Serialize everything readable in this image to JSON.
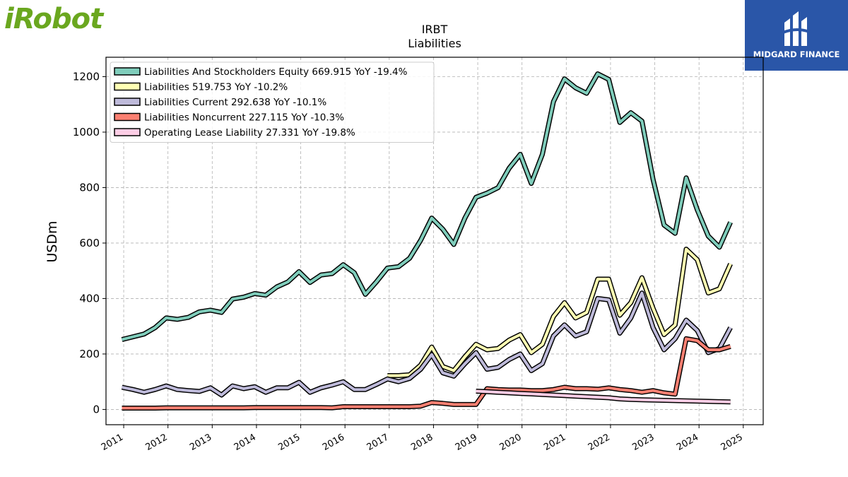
{
  "logos": {
    "left_text": "iRobot",
    "right_text": "MIDGARD FINANCE"
  },
  "chart_data": {
    "type": "line",
    "title": "IRBT",
    "subtitle": "Liabilities",
    "ylabel": "USDm",
    "xlim": [
      2010.6,
      2025.45
    ],
    "ylim": [
      -55,
      1270
    ],
    "yticks": [
      0,
      200,
      400,
      600,
      800,
      1000,
      1200
    ],
    "xticks": [
      "2011",
      "2012",
      "2013",
      "2014",
      "2015",
      "2016",
      "2017",
      "2018",
      "2019",
      "2020",
      "2021",
      "2022",
      "2023",
      "2024",
      "2025"
    ],
    "grid": true,
    "legend_position": "top-left",
    "series": [
      {
        "name": "Liabilities And Stockholders Equity",
        "legend": "Liabilities And Stockholders Equity  669.915 YoY -19.4%",
        "color": "#7fcdbb",
        "x": [
          2010.96,
          2011.21,
          2011.46,
          2011.71,
          2011.96,
          2012.21,
          2012.46,
          2012.71,
          2012.96,
          2013.21,
          2013.46,
          2013.71,
          2013.96,
          2014.21,
          2014.46,
          2014.71,
          2014.96,
          2015.21,
          2015.46,
          2015.71,
          2015.96,
          2016.21,
          2016.46,
          2016.71,
          2016.96,
          2017.21,
          2017.46,
          2017.71,
          2017.96,
          2018.21,
          2018.46,
          2018.71,
          2018.96,
          2019.21,
          2019.46,
          2019.71,
          2019.96,
          2020.21,
          2020.46,
          2020.71,
          2020.96,
          2021.21,
          2021.46,
          2021.71,
          2021.96,
          2022.21,
          2022.46,
          2022.71,
          2022.96,
          2023.21,
          2023.46,
          2023.71,
          2023.96,
          2024.21,
          2024.46,
          2024.71
        ],
        "values": [
          252,
          262,
          272,
          295,
          330,
          325,
          332,
          352,
          358,
          350,
          398,
          405,
          418,
          412,
          442,
          460,
          497,
          458,
          485,
          490,
          522,
          493,
          415,
          460,
          510,
          515,
          545,
          610,
          690,
          650,
          595,
          690,
          765,
          780,
          800,
          870,
          920,
          815,
          920,
          1110,
          1192,
          1160,
          1140,
          1210,
          1190,
          1035,
          1070,
          1040,
          830,
          665,
          635,
          835,
          720,
          625,
          585,
          675
        ]
      },
      {
        "name": "Liabilities",
        "legend": "Liabilities  519.753 YoY -10.2%",
        "color": "#ffffb3",
        "x": [
          2016.96,
          2017.21,
          2017.46,
          2017.71,
          2017.96,
          2018.21,
          2018.46,
          2018.71,
          2018.96,
          2019.21,
          2019.46,
          2019.71,
          2019.96,
          2020.21,
          2020.46,
          2020.71,
          2020.96,
          2021.21,
          2021.46,
          2021.71,
          2021.96,
          2022.21,
          2022.46,
          2022.71,
          2022.96,
          2023.21,
          2023.46,
          2023.71,
          2023.96,
          2024.21,
          2024.46,
          2024.71
        ],
        "values": [
          122,
          122,
          125,
          160,
          225,
          155,
          140,
          190,
          235,
          215,
          220,
          250,
          270,
          205,
          235,
          335,
          385,
          330,
          350,
          470,
          470,
          340,
          385,
          475,
          365,
          270,
          305,
          578,
          540,
          420,
          435,
          525
        ]
      },
      {
        "name": "Liabilities Current",
        "legend": "Liabilities Current  292.638 YoY -10.1%",
        "color": "#bebada",
        "x": [
          2010.96,
          2011.21,
          2011.46,
          2011.71,
          2011.96,
          2012.21,
          2012.46,
          2012.71,
          2012.96,
          2013.21,
          2013.46,
          2013.71,
          2013.96,
          2014.21,
          2014.46,
          2014.71,
          2014.96,
          2015.21,
          2015.46,
          2015.71,
          2015.96,
          2016.21,
          2016.46,
          2016.71,
          2016.96,
          2017.21,
          2017.46,
          2017.71,
          2017.96,
          2018.21,
          2018.46,
          2018.71,
          2018.96,
          2019.21,
          2019.46,
          2019.71,
          2019.96,
          2020.21,
          2020.46,
          2020.71,
          2020.96,
          2021.21,
          2021.46,
          2021.71,
          2021.96,
          2022.21,
          2022.46,
          2022.71,
          2022.96,
          2023.21,
          2023.46,
          2023.71,
          2023.96,
          2024.21,
          2024.46,
          2024.71
        ],
        "values": [
          80,
          72,
          62,
          72,
          85,
          72,
          68,
          65,
          78,
          52,
          85,
          75,
          82,
          62,
          78,
          78,
          98,
          62,
          78,
          88,
          100,
          72,
          72,
          90,
          110,
          100,
          112,
          145,
          198,
          132,
          120,
          165,
          205,
          145,
          152,
          180,
          200,
          140,
          165,
          265,
          305,
          265,
          280,
          400,
          395,
          275,
          330,
          420,
          295,
          215,
          255,
          322,
          285,
          205,
          220,
          295
        ]
      },
      {
        "name": "Liabilities Noncurrent",
        "legend": "Liabilities Noncurrent  227.115 YoY -10.3%",
        "color": "#fb8072",
        "x": [
          2010.96,
          2011.21,
          2011.46,
          2011.71,
          2011.96,
          2012.21,
          2012.46,
          2012.71,
          2012.96,
          2013.21,
          2013.46,
          2013.71,
          2013.96,
          2014.21,
          2014.46,
          2014.71,
          2014.96,
          2015.21,
          2015.46,
          2015.71,
          2015.96,
          2016.21,
          2016.46,
          2016.71,
          2016.96,
          2017.21,
          2017.46,
          2017.71,
          2017.96,
          2018.21,
          2018.46,
          2018.71,
          2018.96,
          2019.21,
          2019.46,
          2019.71,
          2019.96,
          2020.21,
          2020.46,
          2020.71,
          2020.96,
          2021.21,
          2021.46,
          2021.71,
          2021.96,
          2022.21,
          2022.46,
          2022.71,
          2022.96,
          2023.21,
          2023.46,
          2023.71,
          2023.96,
          2024.21,
          2024.46,
          2024.71
        ],
        "values": [
          5,
          5,
          5,
          5,
          6,
          6,
          6,
          6,
          6,
          6,
          6,
          6,
          7,
          7,
          7,
          7,
          7,
          7,
          7,
          6,
          10,
          10,
          10,
          10,
          10,
          10,
          10,
          12,
          25,
          22,
          18,
          18,
          18,
          75,
          72,
          70,
          70,
          68,
          68,
          72,
          80,
          75,
          75,
          73,
          78,
          72,
          68,
          62,
          68,
          60,
          55,
          255,
          248,
          215,
          215,
          227
        ]
      },
      {
        "name": "Operating Lease Liability",
        "legend": "Operating Lease Liability  27.331 YoY -19.8%",
        "color": "#fccde5",
        "x": [
          2018.96,
          2019.21,
          2019.46,
          2019.71,
          2019.96,
          2020.21,
          2020.46,
          2020.71,
          2020.96,
          2021.21,
          2021.46,
          2021.71,
          2021.96,
          2022.21,
          2022.46,
          2022.71,
          2022.96,
          2023.21,
          2023.46,
          2023.71,
          2023.96,
          2024.21,
          2024.46,
          2024.71
        ],
        "values": [
          66,
          64,
          62,
          60,
          58,
          56,
          54,
          52,
          50,
          48,
          46,
          44,
          42,
          38,
          36,
          35,
          34,
          33,
          32,
          31,
          30,
          29,
          28,
          27
        ]
      }
    ]
  }
}
